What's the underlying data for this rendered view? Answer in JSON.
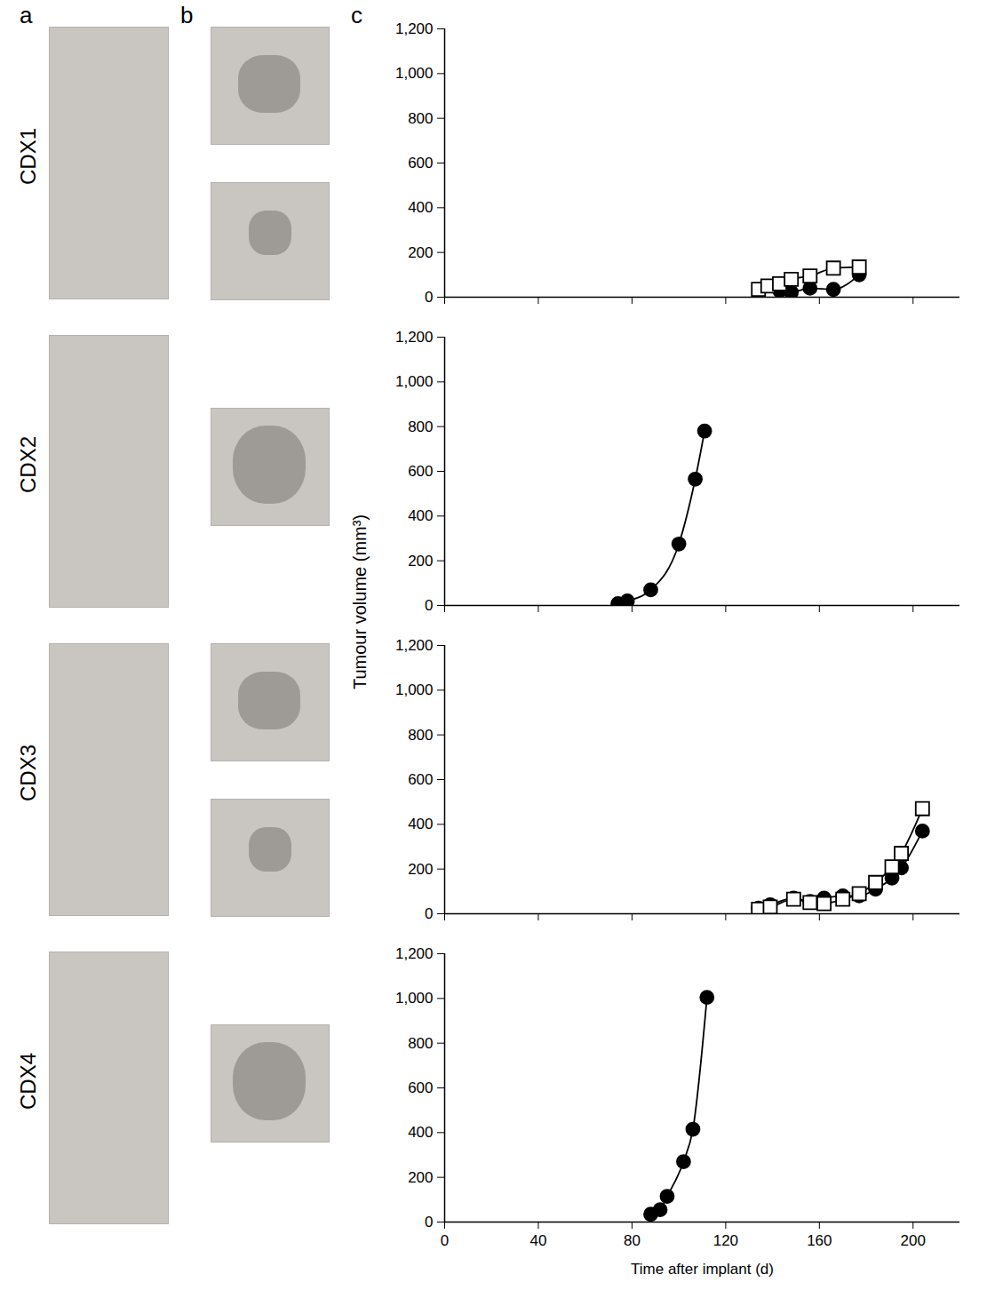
{
  "panel_labels": [
    "a",
    "b",
    "c"
  ],
  "ylabel": "Tumour volume (mm³)",
  "xlabel": "Time after implant (d)",
  "chart_data": [
    {
      "type": "scatter",
      "title": "CDX1",
      "xlim": [
        0,
        220
      ],
      "xticks": [
        0,
        40,
        80,
        120,
        160,
        200
      ],
      "ylim": [
        0,
        1200
      ],
      "yticks": [
        0,
        200,
        400,
        600,
        800,
        {
          "value": 1000,
          "label": "1,000"
        },
        {
          "value": 1200,
          "label": "1,200"
        }
      ],
      "tick_labels": "y",
      "series": [
        {
          "color": "#000000",
          "marker": "circle",
          "line_style": "solid",
          "x": [
            143,
            148,
            156,
            166,
            177
          ],
          "values": [
            30,
            22,
            40,
            35,
            100
          ]
        },
        {
          "color": "#000000",
          "marker": "open square",
          "line_style": "solid",
          "x": [
            134,
            138,
            143,
            148,
            156,
            166,
            177
          ],
          "values": [
            35,
            50,
            60,
            80,
            95,
            130,
            135
          ]
        }
      ]
    },
    {
      "type": "scatter",
      "title": "CDX2",
      "xlim": [
        0,
        220
      ],
      "xticks": [
        0,
        40,
        80,
        120,
        160,
        200
      ],
      "ylim": [
        0,
        1200
      ],
      "yticks": [
        0,
        200,
        400,
        600,
        800,
        {
          "value": 1000,
          "label": "1,000"
        },
        {
          "value": 1200,
          "label": "1,200"
        }
      ],
      "tick_labels": "y",
      "series": [
        {
          "color": "#000000",
          "marker": "circle",
          "line_style": "solid",
          "x": [
            74,
            78,
            88,
            100,
            107,
            111
          ],
          "values": [
            8,
            20,
            70,
            275,
            565,
            780
          ]
        }
      ]
    },
    {
      "type": "scatter",
      "title": "CDX3",
      "xlim": [
        0,
        220
      ],
      "xticks": [
        0,
        40,
        80,
        120,
        160,
        200
      ],
      "ylim": [
        0,
        1200
      ],
      "yticks": [
        0,
        200,
        400,
        600,
        800,
        {
          "value": 1000,
          "label": "1,000"
        },
        {
          "value": 1200,
          "label": "1,200"
        }
      ],
      "tick_labels": "y",
      "series": [
        {
          "color": "#000000",
          "marker": "circle",
          "line_style": "solid",
          "x": [
            134,
            139,
            149,
            156,
            162,
            170,
            177,
            184,
            191,
            195,
            204
          ],
          "values": [
            25,
            40,
            70,
            55,
            70,
            80,
            80,
            110,
            160,
            205,
            370
          ]
        },
        {
          "color": "#000000",
          "marker": "open square",
          "line_style": "solid",
          "x": [
            134,
            139,
            149,
            156,
            162,
            170,
            177,
            184,
            191,
            195,
            204
          ],
          "values": [
            20,
            30,
            65,
            50,
            45,
            65,
            90,
            140,
            210,
            270,
            470
          ]
        }
      ]
    },
    {
      "type": "scatter",
      "title": "CDX4",
      "xlim": [
        0,
        220
      ],
      "xticks": [
        0,
        40,
        80,
        120,
        160,
        200
      ],
      "ylim": [
        0,
        1200
      ],
      "yticks": [
        0,
        200,
        400,
        600,
        800,
        {
          "value": 1000,
          "label": "1,000"
        },
        {
          "value": 1200,
          "label": "1,200"
        }
      ],
      "series": [
        {
          "color": "#000000",
          "marker": "circle",
          "line_style": "solid",
          "x": [
            88,
            92,
            95,
            102,
            106,
            112
          ],
          "values": [
            35,
            55,
            115,
            270,
            415,
            1005
          ]
        }
      ]
    }
  ]
}
